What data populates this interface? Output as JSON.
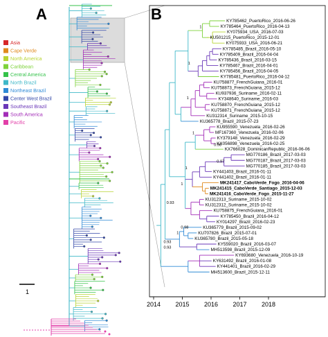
{
  "panels": {
    "a": "A",
    "b": "B"
  },
  "legend": [
    {
      "label": "Asia",
      "color": "#d62728"
    },
    {
      "label": "Cape Verde",
      "color": "#e08a1e"
    },
    {
      "label": "North America",
      "color": "#b8d433"
    },
    {
      "label": "Caribbean",
      "color": "#7ed23a"
    },
    {
      "label": "Central America",
      "color": "#35c24a"
    },
    {
      "label": "North Brazil",
      "color": "#3fb8c8"
    },
    {
      "label": "Northeast Brazil",
      "color": "#2f8ad6"
    },
    {
      "label": "Center West Brazil",
      "color": "#3347a8"
    },
    {
      "label": "Southeast Brazil",
      "color": "#6a37b8"
    },
    {
      "label": "South America",
      "color": "#a32db8"
    },
    {
      "label": "Pacific",
      "color": "#e23fa8"
    }
  ],
  "scale_bar": {
    "label": "1"
  },
  "time_axis": {
    "ticks": [
      "2014",
      "2015",
      "2016",
      "2017",
      "2018"
    ]
  },
  "taxa": [
    {
      "label": "KY785462_PuertoRico_2016-06-26",
      "color": "#7ed23a",
      "bold": false
    },
    {
      "label": "KY785464_PuertoRico_2016-04-13",
      "color": "#7ed23a",
      "bold": false
    },
    {
      "label": "KY075934_USA_2016-07-03",
      "color": "#b8d433",
      "bold": false
    },
    {
      "label": "KU501215_PuertoRico_2015-12-01",
      "color": "#7ed23a",
      "bold": false
    },
    {
      "label": "KY075933_USA_2016-06-21",
      "color": "#b8d433",
      "bold": false
    },
    {
      "label": "KY785485_Brazil_2016-05-10",
      "color": "#6a37b8",
      "bold": false
    },
    {
      "label": "KY785409_Brazil_2016-04-04",
      "color": "#6a37b8",
      "bold": false
    },
    {
      "label": "KY785436_Brazil_2016-03-15",
      "color": "#6a37b8",
      "bold": false
    },
    {
      "label": "KY785467_Brazil_2016-04-01",
      "color": "#6a37b8",
      "bold": false
    },
    {
      "label": "KY785456_Brazil_2016-04-05",
      "color": "#6a37b8",
      "bold": false
    },
    {
      "label": "KY785481_PuertoRico_2016-04-12",
      "color": "#7ed23a",
      "bold": false
    },
    {
      "label": "KU758877_FrenchGuiana_2016-01",
      "color": "#a32db8",
      "bold": false
    },
    {
      "label": "KU758873_FrenchGuiana_2015-12",
      "color": "#a32db8",
      "bold": false
    },
    {
      "label": "KU937936_Suriname_2016-02-11",
      "color": "#a32db8",
      "bold": false
    },
    {
      "label": "KY348640_Suriname_2016-03",
      "color": "#a32db8",
      "bold": false
    },
    {
      "label": "KU758870_FrenchGuiana_2015-12",
      "color": "#a32db8",
      "bold": false
    },
    {
      "label": "KU758871_FrenchGuiana_2015-12",
      "color": "#a32db8",
      "bold": false
    },
    {
      "label": "KU312314_Suriname_2015-10-15",
      "color": "#a32db8",
      "bold": false
    },
    {
      "label": "KU365778_Brazil_2015-07-23",
      "color": "#2f8ad6",
      "bold": false
    },
    {
      "label": "KU955590_Venezuela_2016-02-26",
      "color": "#a32db8",
      "bold": false
    },
    {
      "label": "MF167360_Venezuela_2016-02-06",
      "color": "#a32db8",
      "bold": false
    },
    {
      "label": "KY379148_Venezuela_2016-02-29",
      "color": "#a32db8",
      "bold": false
    },
    {
      "label": "KX056898_Venezuela_2016-02-25",
      "color": "#a32db8",
      "bold": false
    },
    {
      "label": "KX766028_DominicanRepublic_2016-06-06",
      "color": "#7ed23a",
      "bold": false
    },
    {
      "label": "MG770186_Brazil_2017-03-03",
      "color": "#6a37b8",
      "bold": false
    },
    {
      "label": "MG770187_Brazil_2017-03-03",
      "color": "#6a37b8",
      "bold": false
    },
    {
      "label": "MG770185_Brazil_2017-03-03",
      "color": "#6a37b8",
      "bold": false
    },
    {
      "label": "KY441403_Brazil_2016-01-11",
      "color": "#6a37b8",
      "bold": false
    },
    {
      "label": "KY441402_Brazil_2016-01-11",
      "color": "#6a37b8",
      "bold": false
    },
    {
      "label": "MK241417_CaboVerde_Fogo_2016-04-06",
      "color": "#e08a1e",
      "bold": true
    },
    {
      "label": "MK241415_CaboVerde_Santiago_2015-12-03",
      "color": "#e08a1e",
      "bold": true
    },
    {
      "label": "MK241416_CaboVerde_Fogo_2015-11-27",
      "color": "#e08a1e",
      "bold": true
    },
    {
      "label": "KU312313_Suriname_2015-10-02",
      "color": "#a32db8",
      "bold": false
    },
    {
      "label": "KU312312_Suriname_2015-10-02",
      "color": "#a32db8",
      "bold": false
    },
    {
      "label": "KU758875_FrenchGuiana_2016-01",
      "color": "#a32db8",
      "bold": false
    },
    {
      "label": "KY785450_Brazil_2016-04-12",
      "color": "#6a37b8",
      "bold": false
    },
    {
      "label": "KY014297_Brazil_2016-02-23",
      "color": "#6a37b8",
      "bold": false
    },
    {
      "label": "KU365779_Brazil_2015-09-02",
      "color": "#2f8ad6",
      "bold": false
    },
    {
      "label": "KU707826_Brazil_2015-07-01",
      "color": "#2f8ad6",
      "bold": false
    },
    {
      "label": "KU365780_Brazil_2015-05-18",
      "color": "#2f8ad6",
      "bold": false
    },
    {
      "label": "KY559020_Brazil_2016-03-07",
      "color": "#6a37b8",
      "bold": false
    },
    {
      "label": "MH513598_Brazil_2015-12-09",
      "color": "#2f8ad6",
      "bold": false
    },
    {
      "label": "KY693680_Venezuela_2016-10-19",
      "color": "#a32db8",
      "bold": false
    },
    {
      "label": "KY631492_Brazil_2016-01-08",
      "color": "#6a37b8",
      "bold": false
    },
    {
      "label": "KY441401_Brazil_2016-02-29",
      "color": "#6a37b8",
      "bold": false
    },
    {
      "label": "MH513600_Brazil_2015-12-11",
      "color": "#2f8ad6",
      "bold": false
    }
  ],
  "support_values": [
    {
      "label": "1",
      "row": 1.5
    },
    {
      "label": "1",
      "row": 8.0
    },
    {
      "label": "1",
      "row": 14.2
    },
    {
      "label": "1",
      "row": 20.5
    },
    {
      "label": "0.98",
      "row": 22.6
    },
    {
      "label": "0.97",
      "row": 25.6
    },
    {
      "label": "1",
      "row": 26.8
    },
    {
      "label": "1",
      "row": 29.6
    },
    {
      "label": "0.93",
      "row": 33.0
    },
    {
      "label": "0.98",
      "row": 37.4
    },
    {
      "label": "1",
      "row": 38.4
    },
    {
      "label": "0.93",
      "row": 40.0
    },
    {
      "label": "0.93",
      "row": 41.0
    }
  ]
}
